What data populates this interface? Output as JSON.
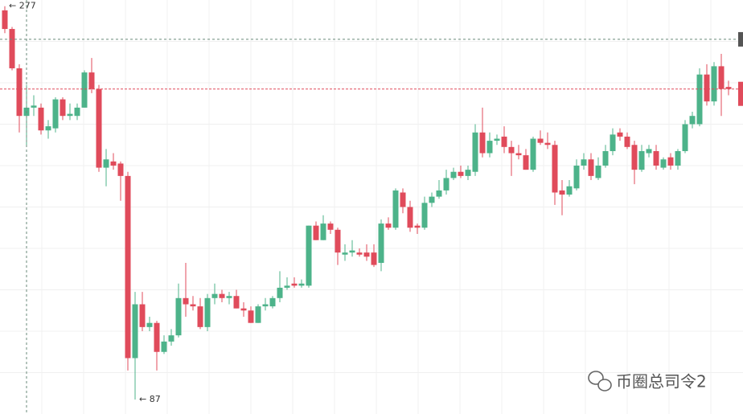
{
  "chart_data": {
    "type": "candlestick",
    "open": [
      275,
      266,
      247,
      224,
      228,
      228,
      217,
      218,
      232,
      224,
      224,
      228,
      245,
      237,
      199,
      202,
      201,
      195,
      107,
      133,
      122,
      124,
      110,
      115,
      118,
      136,
      133,
      132,
      122,
      136,
      138,
      136,
      137,
      131,
      130,
      124,
      132,
      132,
      136,
      141,
      143,
      142,
      142,
      171,
      164,
      172,
      169,
      157,
      158,
      158,
      158,
      158,
      153,
      172,
      170,
      187,
      180,
      171,
      170,
      182,
      185,
      188,
      194,
      197,
      195,
      197,
      216,
      206,
      212,
      214,
      209,
      206,
      205,
      198,
      213,
      211,
      210,
      188,
      186,
      189,
      200,
      203,
      194,
      200,
      207,
      216,
      214,
      210,
      198,
      206,
      207,
      199,
      204,
      200,
      207,
      220,
      220,
      244,
      231,
      248,
      238
    ],
    "high": [
      277,
      267,
      249,
      239,
      234,
      230,
      222,
      233,
      233,
      230,
      230,
      246,
      252,
      239,
      208,
      206,
      202,
      197,
      139,
      139,
      127,
      125,
      118,
      121,
      143,
      153,
      137,
      136,
      138,
      143,
      140,
      139,
      140,
      134,
      132,
      133,
      136,
      137,
      149,
      146,
      146,
      145,
      171,
      173,
      176,
      173,
      170,
      162,
      164,
      160,
      162,
      162,
      174,
      175,
      189,
      189,
      183,
      172,
      185,
      187,
      193,
      198,
      199,
      200,
      200,
      220,
      228,
      216,
      215,
      219,
      212,
      210,
      208,
      214,
      217,
      216,
      212,
      193,
      193,
      203,
      206,
      206,
      204,
      210,
      218,
      218,
      216,
      212,
      210,
      210,
      210,
      204,
      206,
      208,
      222,
      226,
      247,
      249,
      250,
      254,
      241
    ],
    "low": [
      264,
      246,
      216,
      210,
      224,
      215,
      213,
      216,
      222,
      222,
      222,
      228,
      235,
      197,
      190,
      198,
      183,
      101,
      87,
      120,
      120,
      101,
      109,
      113,
      117,
      127,
      130,
      121,
      120,
      133,
      134,
      133,
      131,
      127,
      124,
      124,
      130,
      131,
      134,
      140,
      141,
      141,
      141,
      164,
      164,
      167,
      152,
      154,
      156,
      156,
      154,
      151,
      149,
      169,
      169,
      177,
      168,
      167,
      169,
      180,
      184,
      186,
      193,
      194,
      193,
      195,
      204,
      204,
      210,
      206,
      195,
      203,
      198,
      197,
      210,
      208,
      181,
      176,
      185,
      188,
      198,
      193,
      193,
      199,
      205,
      212,
      208,
      191,
      197,
      204,
      198,
      198,
      198,
      198,
      206,
      218,
      219,
      229,
      229,
      224,
      234
    ],
    "close": [
      266,
      247,
      224,
      228,
      229,
      217,
      219,
      232,
      224,
      225,
      228,
      245,
      237,
      199,
      203,
      200,
      195,
      107,
      133,
      122,
      124,
      110,
      115,
      118,
      136,
      133,
      132,
      122,
      136,
      138,
      136,
      137,
      131,
      130,
      124,
      132,
      133,
      136,
      141,
      142,
      142,
      143,
      171,
      164,
      172,
      169,
      158,
      158,
      159,
      157,
      156,
      152,
      172,
      170,
      188,
      180,
      170,
      170,
      182,
      185,
      188,
      194,
      197,
      195,
      198,
      216,
      206,
      212,
      213,
      209,
      206,
      205,
      198,
      213,
      211,
      210,
      187,
      186,
      190,
      200,
      203,
      195,
      200,
      207,
      215,
      214,
      209,
      198,
      207,
      208,
      200,
      203,
      200,
      207,
      220,
      224,
      244,
      231,
      248,
      237,
      237
    ],
    "up_color": "#4db38a",
    "down_color": "#e04b5b",
    "ylim": [
      80,
      280
    ],
    "yticks": [
      100,
      120,
      140,
      160,
      180,
      200,
      220,
      240,
      260
    ],
    "grid": true,
    "max_label": "← 277",
    "min_label": "← 87",
    "crosshair": {
      "index": 3,
      "value": 261
    }
  },
  "watermark": "币圈总司令2"
}
